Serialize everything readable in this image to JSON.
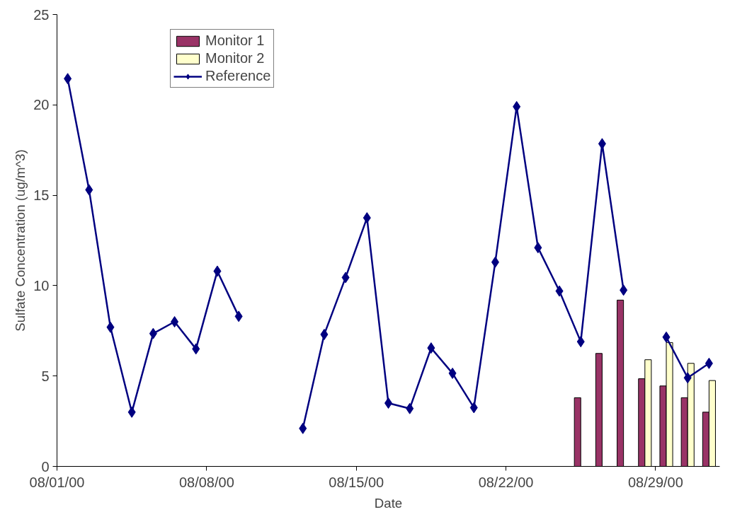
{
  "chart_data": {
    "type": "bar",
    "xlabel": "Date",
    "ylabel": "Sulfate Concentration (ug/m^3)",
    "x": [
      "2000-08-01T12:00",
      "2000-08-02T12:00",
      "2000-08-03T12:00",
      "2000-08-04T12:00",
      "2000-08-05T12:00",
      "2000-08-06T12:00",
      "2000-08-07T12:00",
      "2000-08-08T12:00",
      "2000-08-09T12:00",
      "2000-08-10T12:00",
      "2000-08-11T12:00",
      "2000-08-12T12:00",
      "2000-08-13T12:00",
      "2000-08-14T12:00",
      "2000-08-15T12:00",
      "2000-08-16T12:00",
      "2000-08-17T12:00",
      "2000-08-18T12:00",
      "2000-08-19T12:00",
      "2000-08-20T12:00",
      "2000-08-21T12:00",
      "2000-08-22T12:00",
      "2000-08-23T12:00",
      "2000-08-24T12:00",
      "2000-08-25T12:00",
      "2000-08-26T12:00",
      "2000-08-27T12:00",
      "2000-08-28T12:00",
      "2000-08-29T12:00",
      "2000-08-30T12:00",
      "2000-08-31T12:00"
    ],
    "series": [
      {
        "name": "Monitor 1",
        "color": "#993366",
        "values": [
          null,
          null,
          null,
          null,
          null,
          null,
          null,
          null,
          null,
          null,
          null,
          null,
          null,
          null,
          null,
          null,
          null,
          null,
          null,
          null,
          null,
          null,
          null,
          null,
          3.8,
          6.25,
          9.2,
          4.85,
          4.45,
          3.8,
          3.0
        ]
      },
      {
        "name": "Monitor 2",
        "color": "#ffffcc",
        "values": [
          null,
          null,
          null,
          null,
          null,
          null,
          null,
          null,
          null,
          null,
          null,
          null,
          null,
          null,
          null,
          null,
          null,
          null,
          null,
          null,
          null,
          null,
          null,
          null,
          null,
          null,
          null,
          5.9,
          6.85,
          5.7,
          4.75
        ]
      },
      {
        "name": "Reference",
        "type": "line",
        "color": "#000080",
        "marker": "diamond",
        "values": [
          21.45,
          15.3,
          7.7,
          3.0,
          7.35,
          8.0,
          6.5,
          10.8,
          8.3,
          null,
          null,
          2.1,
          7.3,
          10.45,
          13.75,
          3.5,
          3.2,
          6.55,
          5.15,
          3.25,
          11.3,
          19.9,
          12.1,
          9.7,
          6.9,
          17.85,
          9.75,
          null,
          7.15,
          4.9,
          5.7
        ]
      }
    ],
    "xlim": [
      "2000-08-01",
      "2000-09-01"
    ],
    "xticks": [
      {
        "value": "2000-08-01",
        "label": "08/01/00"
      },
      {
        "value": "2000-08-08",
        "label": "08/08/00"
      },
      {
        "value": "2000-08-15",
        "label": "08/15/00"
      },
      {
        "value": "2000-08-22",
        "label": "08/22/00"
      },
      {
        "value": "2000-08-29",
        "label": "08/29/00"
      }
    ],
    "ylim": [
      0,
      25
    ],
    "yticks": [
      0,
      5,
      10,
      15,
      20,
      25
    ],
    "grid": false,
    "legend": "top left"
  }
}
